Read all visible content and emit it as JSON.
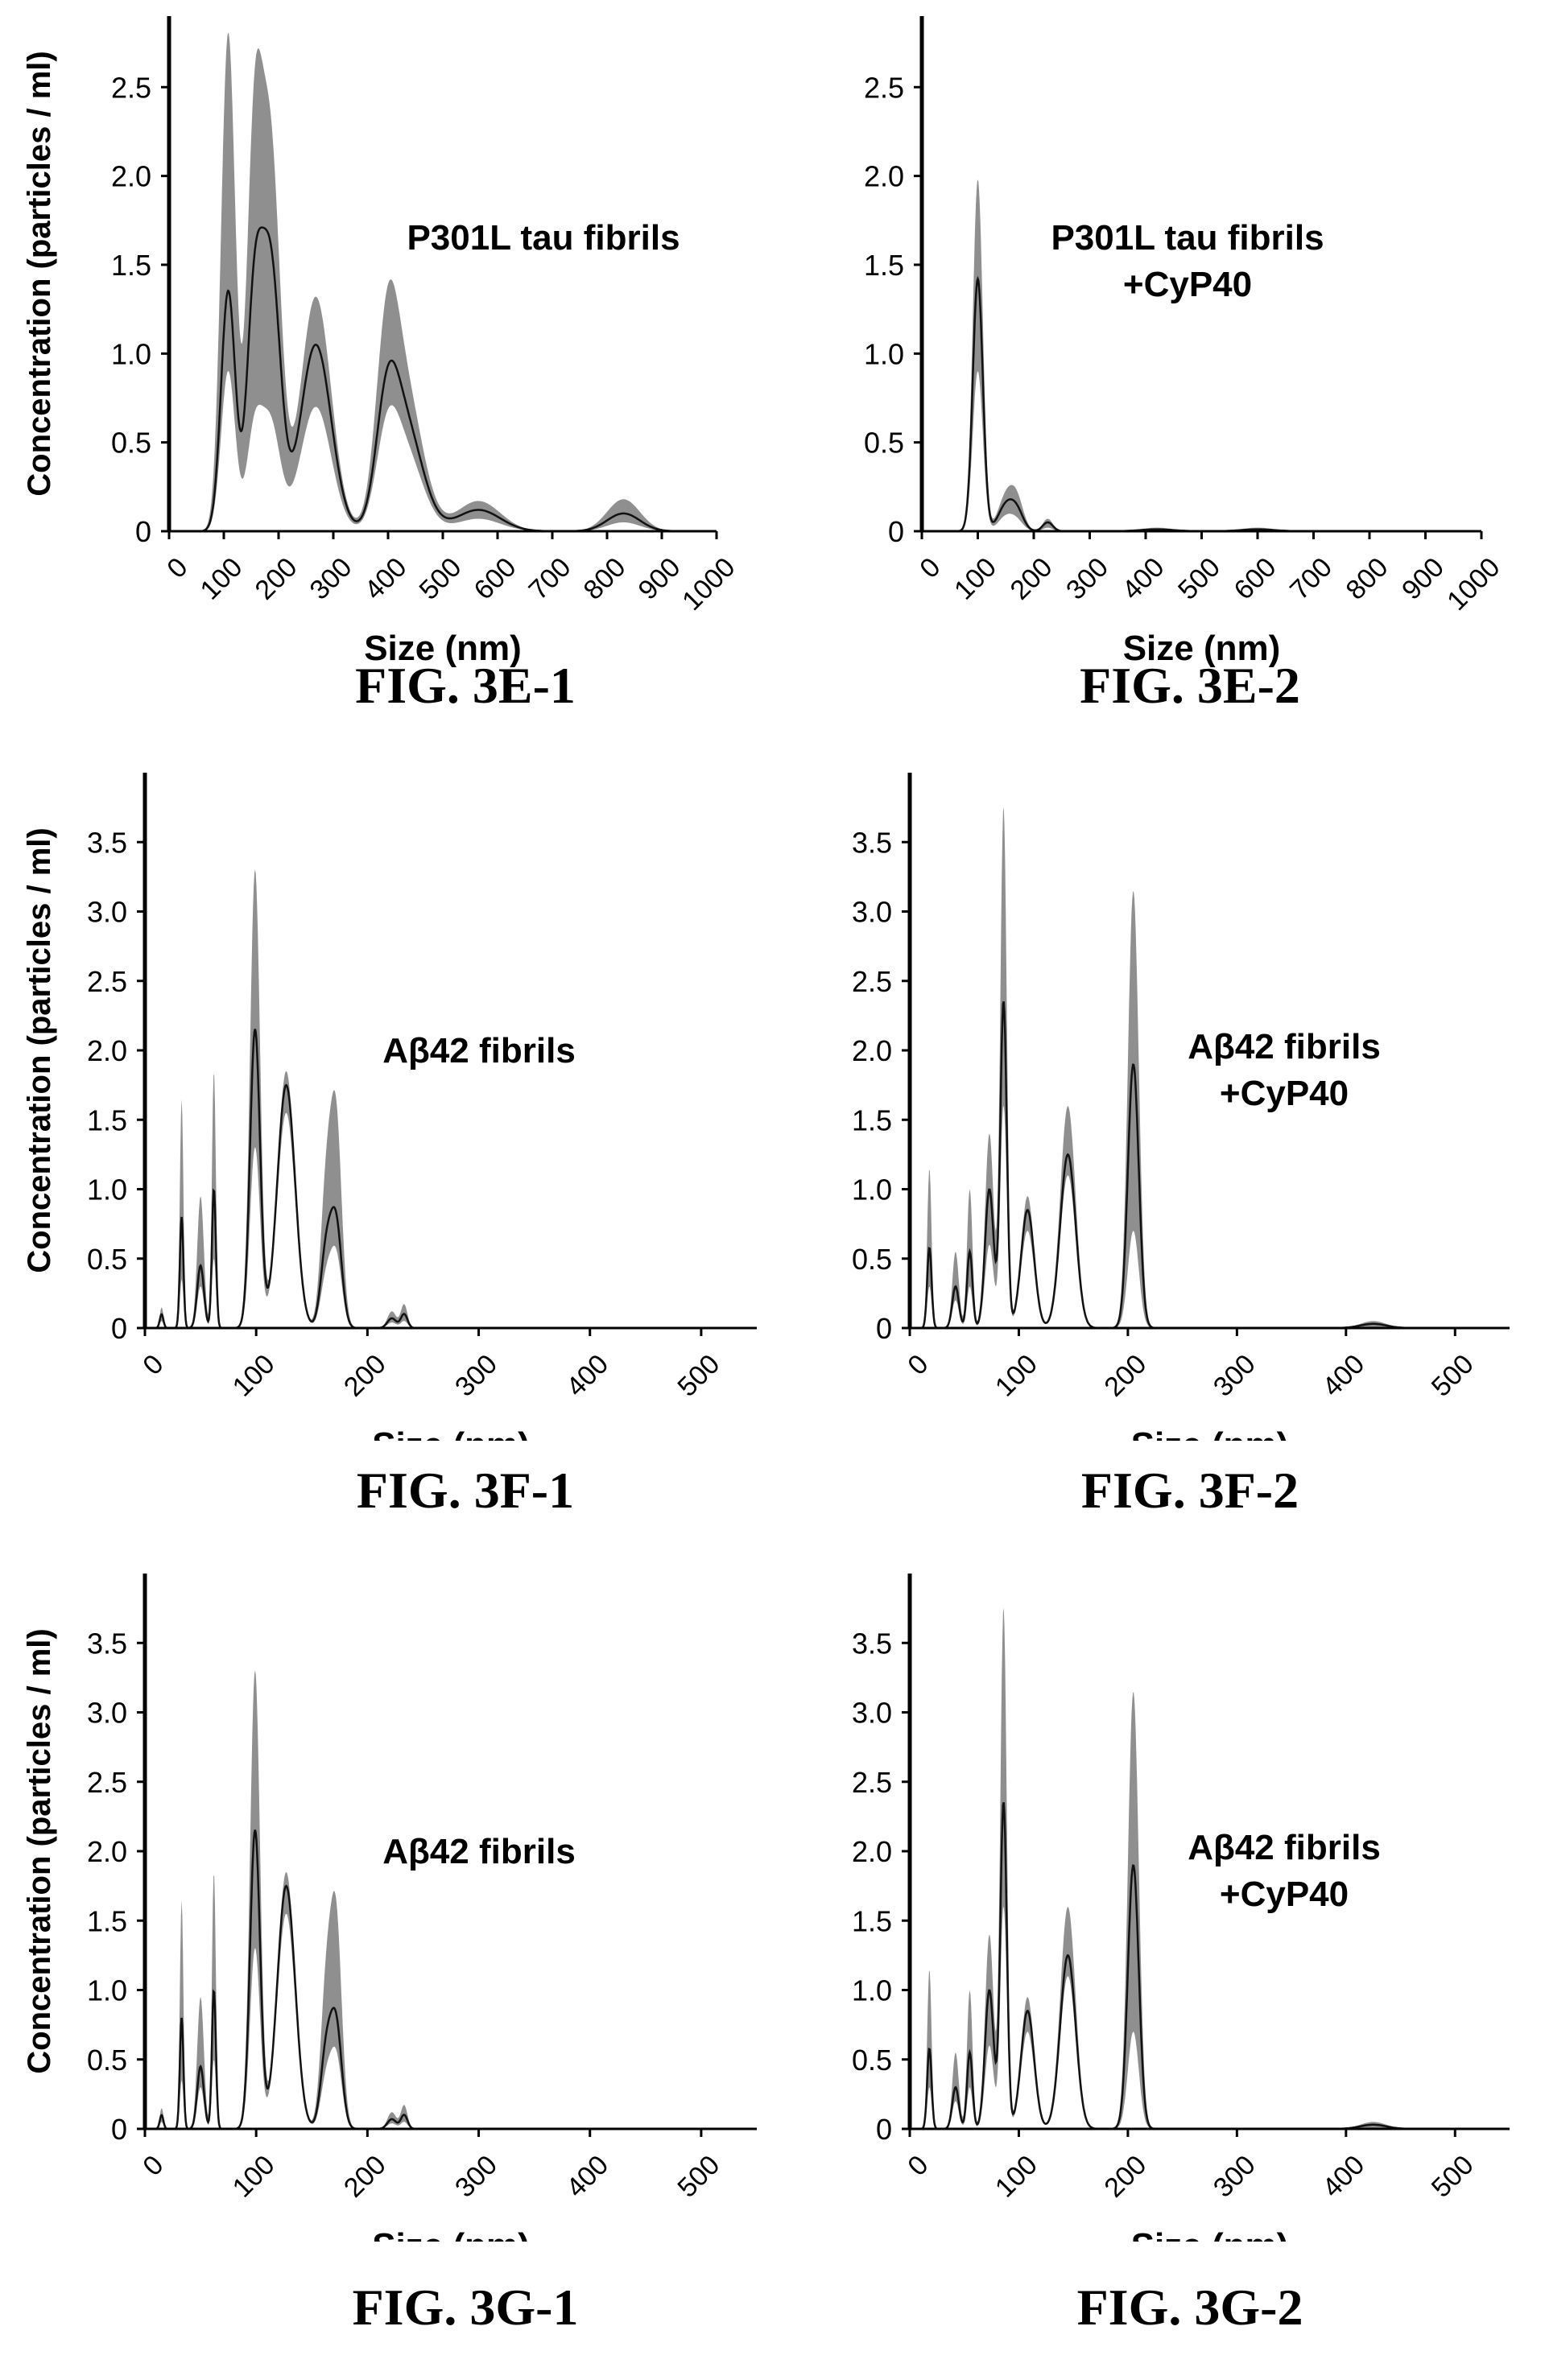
{
  "chart_data": [
    {
      "type": "line",
      "figure_label": "FIG. 3E-1",
      "annotation": [
        "P301L tau fibrils"
      ],
      "xlabel": "Size (nm)",
      "ylabel": "Concentration (particles / ml)",
      "xlim": [
        0,
        1000
      ],
      "ylim": [
        0,
        2.9
      ],
      "x_ticks": [
        "0",
        "100",
        "200",
        "300",
        "400",
        "500",
        "600",
        "700",
        "800",
        "900",
        "1000"
      ],
      "y_ticks": [
        "0",
        "0.5",
        "1.0",
        "1.5",
        "2.0",
        "2.5"
      ],
      "series": [
        {
          "kind": "mean-with-error-band",
          "peaks": [
            {
              "x": 108,
              "mean": 1.35,
              "upper": 2.8,
              "lower": 0.9,
              "width": 13
            },
            {
              "x": 155,
              "mean": 1.15,
              "upper": 2.0,
              "lower": 0.5,
              "width": 14
            },
            {
              "x": 185,
              "mean": 1.5,
              "upper": 2.15,
              "lower": 0.6,
              "width": 18
            },
            {
              "x": 268,
              "mean": 1.05,
              "upper": 1.32,
              "lower": 0.7,
              "width": 28
            },
            {
              "x": 398,
              "mean": 0.55,
              "upper": 0.88,
              "lower": 0.4,
              "width": 20
            },
            {
              "x": 430,
              "mean": 0.6,
              "upper": 0.8,
              "lower": 0.45,
              "width": 32
            },
            {
              "x": 565,
              "mean": 0.12,
              "upper": 0.17,
              "lower": 0.07,
              "width": 40
            },
            {
              "x": 830,
              "mean": 0.1,
              "upper": 0.18,
              "lower": 0.05,
              "width": 30
            }
          ]
        }
      ]
    },
    {
      "type": "line",
      "figure_label": "FIG. 3E-2",
      "annotation": [
        "P301L tau fibrils",
        "+CyP40"
      ],
      "xlabel": "Size (nm)",
      "ylabel": "",
      "xlim": [
        0,
        1000
      ],
      "ylim": [
        0,
        2.9
      ],
      "x_ticks": [
        "0",
        "100",
        "200",
        "300",
        "400",
        "500",
        "600",
        "700",
        "800",
        "900",
        "1000"
      ],
      "y_ticks": [
        "0",
        "0.5",
        "1.0",
        "1.5",
        "2.0",
        "2.5"
      ],
      "series": [
        {
          "kind": "mean-with-error-band",
          "peaks": [
            {
              "x": 100,
              "mean": 1.42,
              "upper": 1.98,
              "lower": 0.9,
              "width": 9
            },
            {
              "x": 150,
              "mean": 0.14,
              "upper": 0.19,
              "lower": 0.08,
              "width": 14
            },
            {
              "x": 170,
              "mean": 0.1,
              "upper": 0.16,
              "lower": 0.05,
              "width": 12
            },
            {
              "x": 225,
              "mean": 0.05,
              "upper": 0.07,
              "lower": 0.02,
              "width": 9
            },
            {
              "x": 420,
              "mean": 0.01,
              "upper": 0.02,
              "lower": 0.0,
              "width": 30
            },
            {
              "x": 600,
              "mean": 0.01,
              "upper": 0.02,
              "lower": 0.0,
              "width": 30
            }
          ]
        }
      ]
    },
    {
      "type": "line",
      "figure_label": "FIG. 3F-1",
      "annotation": [
        "Aβ42 fibrils"
      ],
      "xlabel": "Size (nm)",
      "ylabel": "Concentration (particles / ml)",
      "xlim": [
        0,
        550
      ],
      "ylim": [
        0,
        4.0
      ],
      "x_ticks": [
        "0",
        "100",
        "200",
        "300",
        "400",
        "500"
      ],
      "y_ticks": [
        "0",
        "0.5",
        "1.0",
        "1.5",
        "2.0",
        "2.5",
        "3.0",
        "3.5"
      ],
      "series": [
        {
          "kind": "mean-with-error-band",
          "peaks": [
            {
              "x": 15,
              "mean": 0.1,
              "upper": 0.15,
              "lower": 0.05,
              "width": 1.6
            },
            {
              "x": 33,
              "mean": 0.8,
              "upper": 1.65,
              "lower": 0.35,
              "width": 1.6
            },
            {
              "x": 50,
              "mean": 0.45,
              "upper": 0.95,
              "lower": 0.3,
              "width": 3
            },
            {
              "x": 62,
              "mean": 1.0,
              "upper": 1.85,
              "lower": 0.5,
              "width": 1.8
            },
            {
              "x": 99,
              "mean": 2.15,
              "upper": 3.3,
              "lower": 1.3,
              "width": 4.5
            },
            {
              "x": 127,
              "mean": 1.75,
              "upper": 1.85,
              "lower": 1.55,
              "width": 8
            },
            {
              "x": 163,
              "mean": 0.55,
              "upper": 1.0,
              "lower": 0.35,
              "width": 5
            },
            {
              "x": 172,
              "mean": 0.72,
              "upper": 1.45,
              "lower": 0.5,
              "width": 5
            },
            {
              "x": 222,
              "mean": 0.07,
              "upper": 0.12,
              "lower": 0.04,
              "width": 4
            },
            {
              "x": 233,
              "mean": 0.1,
              "upper": 0.17,
              "lower": 0.05,
              "width": 3
            }
          ]
        }
      ]
    },
    {
      "type": "line",
      "figure_label": "FIG. 3F-2",
      "annotation": [
        "Aβ42 fibrils",
        "+CyP40"
      ],
      "xlabel": "Size (nm)",
      "ylabel": "",
      "xlim": [
        0,
        550
      ],
      "ylim": [
        0,
        4.0
      ],
      "x_ticks": [
        "0",
        "100",
        "200",
        "300",
        "400",
        "500"
      ],
      "y_ticks": [
        "0",
        "0.5",
        "1.0",
        "1.5",
        "2.0",
        "2.5",
        "3.0",
        "3.5"
      ],
      "series": [
        {
          "kind": "mean-with-error-band",
          "peaks": [
            {
              "x": 18,
              "mean": 0.58,
              "upper": 1.15,
              "lower": 0.3,
              "width": 2
            },
            {
              "x": 42,
              "mean": 0.3,
              "upper": 0.55,
              "lower": 0.2,
              "width": 3
            },
            {
              "x": 55,
              "mean": 0.55,
              "upper": 1.0,
              "lower": 0.3,
              "width": 2.5
            },
            {
              "x": 73,
              "mean": 1.0,
              "upper": 1.4,
              "lower": 0.6,
              "width": 4
            },
            {
              "x": 86,
              "mean": 2.35,
              "upper": 3.75,
              "lower": 1.6,
              "width": 3
            },
            {
              "x": 108,
              "mean": 0.85,
              "upper": 0.95,
              "lower": 0.7,
              "width": 6
            },
            {
              "x": 145,
              "mean": 1.25,
              "upper": 1.6,
              "lower": 1.1,
              "width": 7
            },
            {
              "x": 205,
              "mean": 1.9,
              "upper": 3.15,
              "lower": 0.7,
              "width": 5
            },
            {
              "x": 425,
              "mean": 0.03,
              "upper": 0.05,
              "lower": 0.0,
              "width": 12
            }
          ]
        }
      ]
    },
    {
      "type": "line",
      "figure_label": "FIG. 3G-1",
      "annotation": [
        "Aβ42 fibrils"
      ],
      "xlabel": "Size (nm)",
      "ylabel": "Concentration (particles / ml)",
      "xlim": [
        0,
        550
      ],
      "ylim": [
        0,
        4.0
      ],
      "x_ticks": [
        "0",
        "100",
        "200",
        "300",
        "400",
        "500"
      ],
      "y_ticks": [
        "0",
        "0.5",
        "1.0",
        "1.5",
        "2.0",
        "2.5",
        "3.0",
        "3.5"
      ],
      "series": [
        {
          "kind": "mean-with-error-band",
          "peaks": [
            {
              "x": 15,
              "mean": 0.1,
              "upper": 0.15,
              "lower": 0.05,
              "width": 1.6
            },
            {
              "x": 33,
              "mean": 0.8,
              "upper": 1.65,
              "lower": 0.35,
              "width": 1.6
            },
            {
              "x": 50,
              "mean": 0.45,
              "upper": 0.95,
              "lower": 0.3,
              "width": 3
            },
            {
              "x": 62,
              "mean": 1.0,
              "upper": 1.85,
              "lower": 0.5,
              "width": 1.8
            },
            {
              "x": 99,
              "mean": 2.15,
              "upper": 3.3,
              "lower": 1.3,
              "width": 4.5
            },
            {
              "x": 127,
              "mean": 1.75,
              "upper": 1.85,
              "lower": 1.55,
              "width": 8
            },
            {
              "x": 163,
              "mean": 0.55,
              "upper": 1.0,
              "lower": 0.35,
              "width": 5
            },
            {
              "x": 172,
              "mean": 0.72,
              "upper": 1.45,
              "lower": 0.5,
              "width": 5
            },
            {
              "x": 222,
              "mean": 0.07,
              "upper": 0.12,
              "lower": 0.04,
              "width": 4
            },
            {
              "x": 233,
              "mean": 0.1,
              "upper": 0.17,
              "lower": 0.05,
              "width": 3
            }
          ]
        }
      ]
    },
    {
      "type": "line",
      "figure_label": "FIG. 3G-2",
      "annotation": [
        "Aβ42 fibrils",
        "+CyP40"
      ],
      "xlabel": "Size (nm)",
      "ylabel": "",
      "xlim": [
        0,
        550
      ],
      "ylim": [
        0,
        4.0
      ],
      "x_ticks": [
        "0",
        "100",
        "200",
        "300",
        "400",
        "500"
      ],
      "y_ticks": [
        "0",
        "0.5",
        "1.0",
        "1.5",
        "2.0",
        "2.5",
        "3.0",
        "3.5"
      ],
      "series": [
        {
          "kind": "mean-with-error-band",
          "peaks": [
            {
              "x": 18,
              "mean": 0.58,
              "upper": 1.15,
              "lower": 0.3,
              "width": 2
            },
            {
              "x": 42,
              "mean": 0.3,
              "upper": 0.55,
              "lower": 0.2,
              "width": 3
            },
            {
              "x": 55,
              "mean": 0.55,
              "upper": 1.0,
              "lower": 0.3,
              "width": 2.5
            },
            {
              "x": 73,
              "mean": 1.0,
              "upper": 1.4,
              "lower": 0.6,
              "width": 4
            },
            {
              "x": 86,
              "mean": 2.35,
              "upper": 3.75,
              "lower": 1.6,
              "width": 3
            },
            {
              "x": 108,
              "mean": 0.85,
              "upper": 0.95,
              "lower": 0.7,
              "width": 6
            },
            {
              "x": 145,
              "mean": 1.25,
              "upper": 1.6,
              "lower": 1.1,
              "width": 7
            },
            {
              "x": 205,
              "mean": 1.9,
              "upper": 3.15,
              "lower": 0.7,
              "width": 5
            },
            {
              "x": 425,
              "mean": 0.03,
              "upper": 0.05,
              "lower": 0.0,
              "width": 12
            }
          ]
        }
      ]
    }
  ],
  "colors": {
    "band": "#8f8f8f",
    "mean_line": "#111111",
    "axis": "#000000"
  }
}
